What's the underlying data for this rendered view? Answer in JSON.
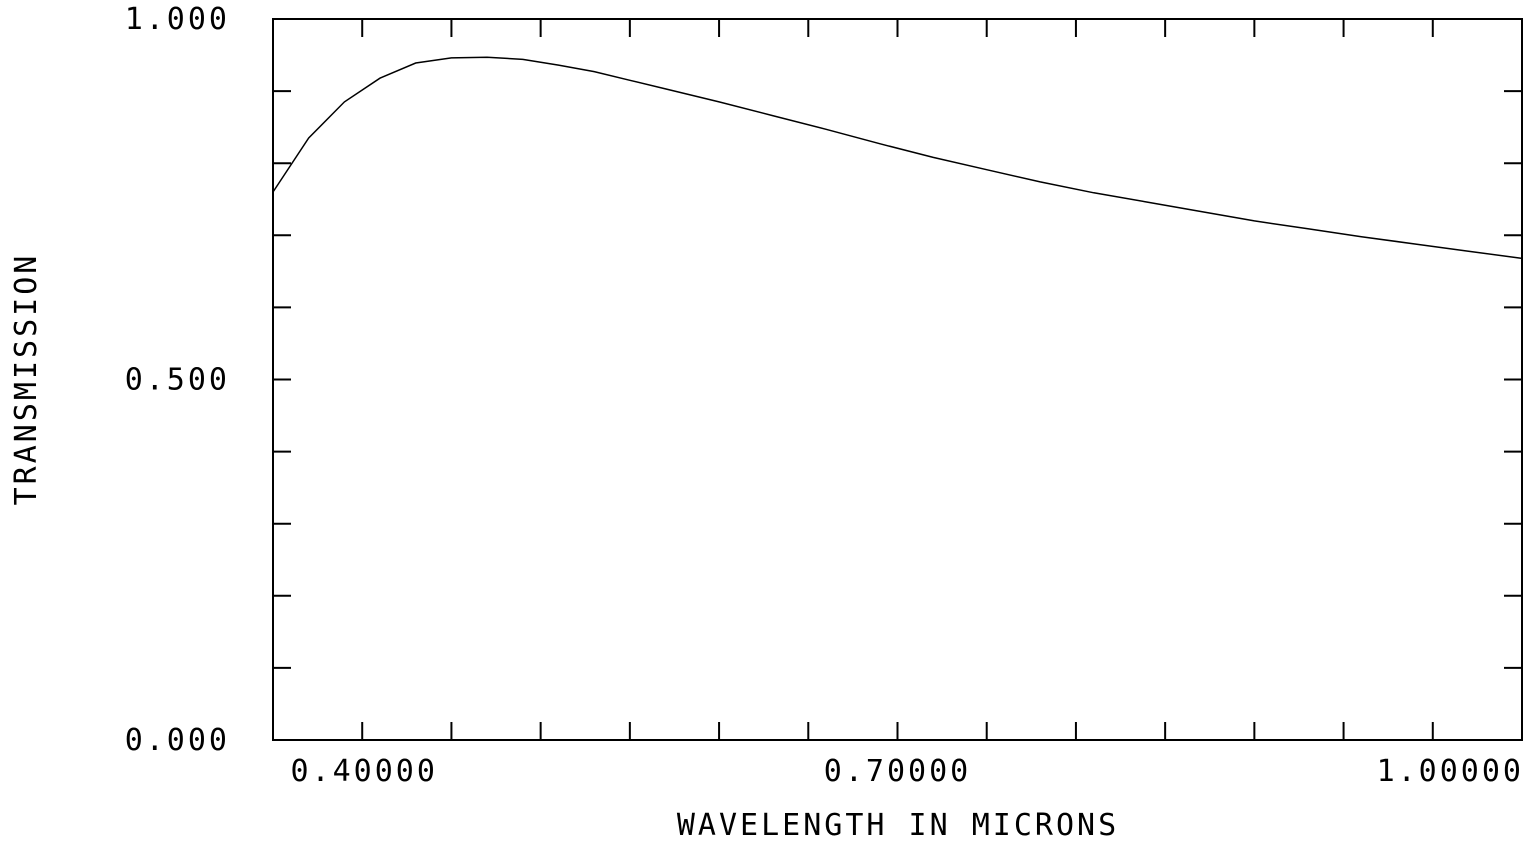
{
  "chart_data": {
    "type": "line",
    "xlabel": "WAVELENGTH IN MICRONS",
    "ylabel": "TRANSMISSION",
    "xlim": [
      0.35,
      1.05
    ],
    "ylim": [
      0.0,
      1.0
    ],
    "x_major_ticks": [
      0.4,
      0.7,
      1.0
    ],
    "x_tick_labels": [
      "0.40000",
      "0.70000",
      "1.00000"
    ],
    "x_minor_ticks": [
      0.45,
      0.5,
      0.55,
      0.6,
      0.65,
      0.75,
      0.8,
      0.85,
      0.9,
      0.95
    ],
    "y_ticks": [
      0.0,
      0.1,
      0.2,
      0.3,
      0.4,
      0.5,
      0.6,
      0.7,
      0.8,
      0.9,
      1.0
    ],
    "y_tick_labels": [
      {
        "value": 1.0,
        "label": "1.000"
      },
      {
        "value": 0.5,
        "label": "0.500"
      },
      {
        "value": 0.0,
        "label": "0.000"
      }
    ],
    "grid": false,
    "line_color": "#000000",
    "series": [
      {
        "x": [
          0.35,
          0.37,
          0.39,
          0.41,
          0.43,
          0.45,
          0.47,
          0.49,
          0.51,
          0.53,
          0.55,
          0.57,
          0.6,
          0.63,
          0.66,
          0.69,
          0.72,
          0.75,
          0.78,
          0.81,
          0.84,
          0.87,
          0.9,
          0.93,
          0.96,
          0.99,
          1.02,
          1.05
        ],
        "values": [
          0.76,
          0.835,
          0.885,
          0.918,
          0.939,
          0.946,
          0.947,
          0.944,
          0.936,
          0.927,
          0.915,
          0.903,
          0.885,
          0.866,
          0.847,
          0.827,
          0.808,
          0.791,
          0.774,
          0.759,
          0.746,
          0.733,
          0.72,
          0.709,
          0.698,
          0.688,
          0.678,
          0.668
        ]
      }
    ]
  }
}
